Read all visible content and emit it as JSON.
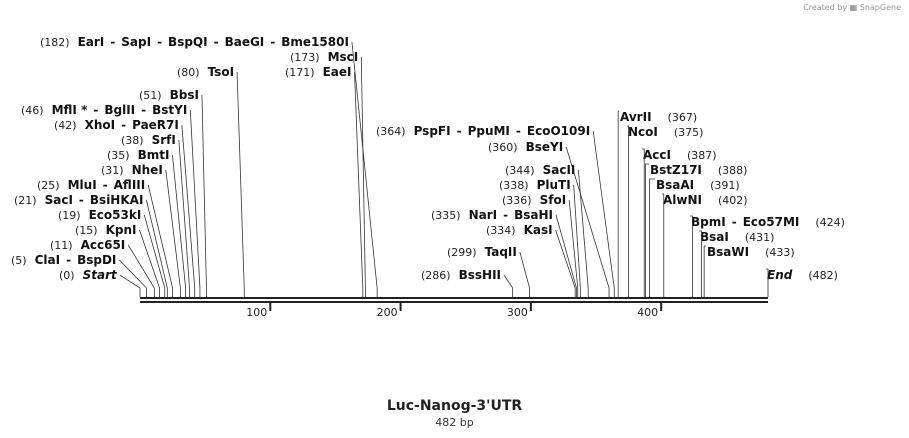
{
  "watermark": {
    "prefix": "Created by",
    "brand": "SnapGene"
  },
  "map": {
    "name": "Luc-Nanog-3'UTR",
    "length_label": "482 bp",
    "total_bp": 482,
    "ticks": [
      100,
      200,
      300,
      400
    ]
  },
  "rows": [
    {
      "pos": "(182)",
      "names": [
        "EarI",
        "SapI",
        "BspQI",
        "BaeGI",
        "Bme1580I"
      ],
      "bp": 182,
      "side": "left"
    },
    {
      "pos": "(173)",
      "names": [
        "MscI"
      ],
      "bp": 173,
      "side": "left"
    },
    {
      "pos": "(80)",
      "names": [
        "TsoI"
      ],
      "bp": 80,
      "side": "left"
    },
    {
      "pos": "(171)",
      "names": [
        "EaeI"
      ],
      "bp": 171,
      "side": "left"
    },
    {
      "pos": "(51)",
      "names": [
        "BbsI"
      ],
      "bp": 51,
      "side": "left"
    },
    {
      "pos": "(46)",
      "names": [
        "MflI *",
        "BglII",
        "BstYI"
      ],
      "bp": 46,
      "side": "left"
    },
    {
      "pos": "(42)",
      "names": [
        "XhoI",
        "PaeR7I"
      ],
      "bp": 42,
      "side": "left"
    },
    {
      "pos": "(38)",
      "names": [
        "SrfI"
      ],
      "bp": 38,
      "side": "left"
    },
    {
      "pos": "(35)",
      "names": [
        "BmtI"
      ],
      "bp": 35,
      "side": "left"
    },
    {
      "pos": "(31)",
      "names": [
        "NheI"
      ],
      "bp": 31,
      "side": "left"
    },
    {
      "pos": "(25)",
      "names": [
        "MluI",
        "AflIII"
      ],
      "bp": 25,
      "side": "left"
    },
    {
      "pos": "(21)",
      "names": [
        "SacI",
        "BsiHKAI"
      ],
      "bp": 21,
      "side": "left"
    },
    {
      "pos": "(19)",
      "names": [
        "Eco53kI"
      ],
      "bp": 19,
      "side": "left"
    },
    {
      "pos": "(15)",
      "names": [
        "KpnI"
      ],
      "bp": 15,
      "side": "left"
    },
    {
      "pos": "(11)",
      "names": [
        "Acc65I"
      ],
      "bp": 11,
      "side": "left"
    },
    {
      "pos": "(5)",
      "names": [
        "ClaI",
        "BspDI"
      ],
      "bp": 5,
      "side": "left"
    },
    {
      "pos": "(0)",
      "names": [
        "Start"
      ],
      "bp": 0,
      "side": "left",
      "italic": true
    },
    {
      "pos": "(364)",
      "names": [
        "PspFI",
        "PpuMI",
        "EcoO109I"
      ],
      "bp": 364,
      "side": "left"
    },
    {
      "pos": "(360)",
      "names": [
        "BseYI"
      ],
      "bp": 360,
      "side": "left"
    },
    {
      "pos": "(344)",
      "names": [
        "SacII"
      ],
      "bp": 344,
      "side": "left"
    },
    {
      "pos": "(338)",
      "names": [
        "PluTI"
      ],
      "bp": 338,
      "side": "left"
    },
    {
      "pos": "(336)",
      "names": [
        "SfoI"
      ],
      "bp": 336,
      "side": "left"
    },
    {
      "pos": "(335)",
      "names": [
        "NarI",
        "BsaHI"
      ],
      "bp": 335,
      "side": "left"
    },
    {
      "pos": "(334)",
      "names": [
        "KasI"
      ],
      "bp": 334,
      "side": "left"
    },
    {
      "pos": "(299)",
      "names": [
        "TaqII"
      ],
      "bp": 299,
      "side": "left"
    },
    {
      "pos": "(286)",
      "names": [
        "BssHII"
      ],
      "bp": 286,
      "side": "left"
    },
    {
      "pos": "(367)",
      "names": [
        "AvrII"
      ],
      "bp": 367,
      "side": "right"
    },
    {
      "pos": "(375)",
      "names": [
        "NcoI"
      ],
      "bp": 375,
      "side": "right"
    },
    {
      "pos": "(387)",
      "names": [
        "AccI"
      ],
      "bp": 387,
      "side": "right"
    },
    {
      "pos": "(388)",
      "names": [
        "BstZ17I"
      ],
      "bp": 388,
      "side": "right"
    },
    {
      "pos": "(391)",
      "names": [
        "BsaAI"
      ],
      "bp": 391,
      "side": "right"
    },
    {
      "pos": "(402)",
      "names": [
        "AlwNI"
      ],
      "bp": 402,
      "side": "right"
    },
    {
      "pos": "(424)",
      "names": [
        "BpmI",
        "Eco57MI"
      ],
      "bp": 424,
      "side": "right"
    },
    {
      "pos": "(431)",
      "names": [
        "BsaI"
      ],
      "bp": 431,
      "side": "right"
    },
    {
      "pos": "(433)",
      "names": [
        "BsaWI"
      ],
      "bp": 433,
      "side": "right"
    },
    {
      "pos": "(482)",
      "names": [
        "End"
      ],
      "bp": 482,
      "side": "right",
      "italic": true
    }
  ]
}
